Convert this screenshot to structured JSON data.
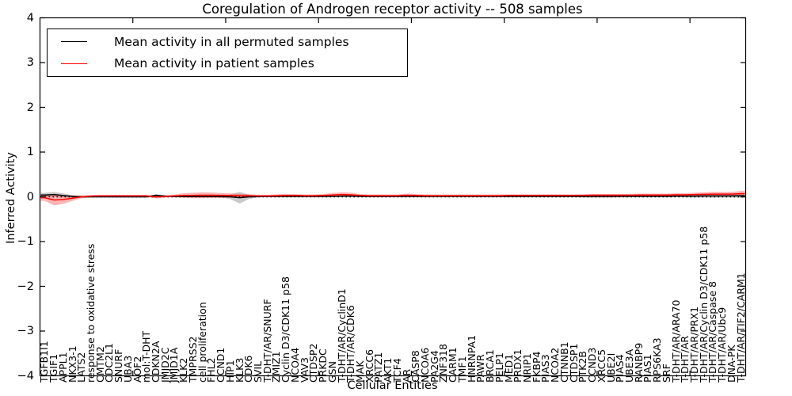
{
  "chart_data": {
    "type": "line",
    "title": "Coregulation of Androgen receptor activity -- 508 samples",
    "xlabel": "Cellular Entities",
    "ylabel": "Inferred Activity",
    "ylim": [
      -4,
      4
    ],
    "xlim": [
      0,
      76
    ],
    "grid": false,
    "legend_position": "upper left",
    "yticks": [
      {
        "value": 4,
        "label": "4"
      },
      {
        "value": 3,
        "label": "3"
      },
      {
        "value": 2,
        "label": "2"
      },
      {
        "value": 1,
        "label": "1"
      },
      {
        "value": 0,
        "label": "0"
      },
      {
        "value": -1,
        "label": "−1"
      },
      {
        "value": -2,
        "label": "−2"
      },
      {
        "value": -3,
        "label": "−3"
      },
      {
        "value": -4,
        "label": "−4"
      }
    ],
    "xticks": [
      10,
      20,
      30,
      40,
      50,
      60,
      70
    ],
    "zero_line": {
      "value": 0,
      "style": "dotted",
      "color": "#000000"
    },
    "categories": [
      "TGFB1I1",
      "TGIF1",
      "APPL1",
      "NKX3-1",
      "LATS2",
      "response to oxidative stress",
      "CMTM2",
      "CDC2L1",
      "SNURF",
      "UBA3",
      "AOF2",
      "mol:T-DHT",
      "CDKN2A",
      "JMJD2C",
      "JMJD1A",
      "KLK2",
      "TMPRSS2",
      "cell proliferation",
      "FHL2",
      "CCND1",
      "HIP1",
      "KLK3",
      "CDK6",
      "SVIL",
      "T-DHT/AR/SNURF",
      "ZMIZ1",
      "Cyclin D3/CDK11 p58",
      "NCOA4",
      "VAV3",
      "CTDSP2",
      "PRKDC",
      "GSN",
      "T-DHT/AR/CyclinD1",
      "T-DHT/AR/CDK6",
      "MAK",
      "XRCC6",
      "PATZ1",
      "AKT1",
      "TCF4",
      "AR",
      "CASP8",
      "NCOA6",
      "PA2G4",
      "ZNF318",
      "CARM1",
      "TMF1",
      "HNRNPA1",
      "PAWR",
      "BRCA1",
      "PELP1",
      "MED1",
      "PRDX1",
      "NRIP1",
      "FKBP4",
      "PIAS3",
      "NCOA2",
      "CTNNB1",
      "CTDSP1",
      "PTK2B",
      "CCND3",
      "XRCC5",
      "UBE2I",
      "PIAS4",
      "UBE3A",
      "RANBP9",
      "PIAS1",
      "RPS6KA3",
      "SRF",
      "T-DHT/AR/ARA70",
      "T-DHT/AR",
      "T-DHT/AR/PRX1",
      "T-DHT/AR/Cyclin D3/CDK11 p58",
      "T-DHT/AR/Caspase 8",
      "T-DHT/AR/Ubc9",
      "DNA-PK",
      "T-DHT/AR/TIF2/CARM1"
    ],
    "series": [
      {
        "name": "Mean activity in all permuted samples",
        "color": "#000000",
        "band_color": "rgba(80,80,80,0.30)",
        "values": [
          0.04,
          0.05,
          0.03,
          0.01,
          0,
          0,
          0,
          0,
          0,
          0,
          0,
          0,
          0.035,
          0.015,
          0.005,
          0.005,
          0.005,
          0.005,
          0.005,
          0.005,
          0,
          -0.02,
          0,
          0.005,
          0.01,
          0.01,
          0.01,
          0.01,
          0.01,
          0.01,
          0.01,
          0.01,
          0.015,
          0.015,
          0.01,
          0.01,
          0.01,
          0.01,
          0.01,
          0.01,
          0.01,
          0.01,
          0.01,
          0.01,
          0.01,
          0.01,
          0.01,
          0.01,
          0.01,
          0.01,
          0.01,
          0.01,
          0.01,
          0.01,
          0.01,
          0.01,
          0.01,
          0.01,
          0.01,
          0.01,
          0.01,
          0.01,
          0.01,
          0.01,
          0.01,
          0.01,
          0.01,
          0.01,
          0.015,
          0.015,
          0.015,
          0.02,
          0.02,
          0.02,
          0.02,
          0.025
        ],
        "std": [
          0.05,
          0.06,
          0.045,
          0.025,
          0.015,
          0.015,
          0.015,
          0.015,
          0.015,
          0.015,
          0.015,
          0.015,
          0.02,
          0.015,
          0.015,
          0.015,
          0.015,
          0.015,
          0.015,
          0.02,
          0.05,
          0.13,
          0.05,
          0.015,
          0.015,
          0.015,
          0.015,
          0.015,
          0.015,
          0.015,
          0.015,
          0.015,
          0.02,
          0.02,
          0.015,
          0.015,
          0.015,
          0.015,
          0.015,
          0.015,
          0.015,
          0.015,
          0.015,
          0.015,
          0.015,
          0.015,
          0.015,
          0.015,
          0.015,
          0.015,
          0.015,
          0.015,
          0.015,
          0.015,
          0.015,
          0.015,
          0.015,
          0.015,
          0.025,
          0.025,
          0.025,
          0.025,
          0.015,
          0.015,
          0.015,
          0.015,
          0.015,
          0.015,
          0.02,
          0.025,
          0.03,
          0.035,
          0.04,
          0.035,
          0.035,
          0.05
        ]
      },
      {
        "name": "Mean activity in patient samples",
        "color": "#ff0000",
        "band_color": "rgba(255,40,40,0.35)",
        "values": [
          -0.02,
          -0.07,
          -0.06,
          -0.03,
          0,
          0.015,
          0.02,
          0.02,
          0.02,
          0.02,
          0.02,
          0.02,
          -0.005,
          0.01,
          0.02,
          0.03,
          0.03,
          0.035,
          0.035,
          0.03,
          0.03,
          0.025,
          0.025,
          0.02,
          0.02,
          0.025,
          0.03,
          0.03,
          0.025,
          0.025,
          0.03,
          0.04,
          0.05,
          0.045,
          0.03,
          0.025,
          0.025,
          0.025,
          0.025,
          0.035,
          0.03,
          0.025,
          0.025,
          0.025,
          0.025,
          0.025,
          0.025,
          0.025,
          0.025,
          0.025,
          0.03,
          0.03,
          0.03,
          0.03,
          0.03,
          0.03,
          0.03,
          0.03,
          0.03,
          0.035,
          0.035,
          0.035,
          0.035,
          0.035,
          0.04,
          0.04,
          0.04,
          0.04,
          0.045,
          0.045,
          0.05,
          0.055,
          0.06,
          0.06,
          0.06,
          0.07
        ],
        "std": [
          0.07,
          0.12,
          0.1,
          0.06,
          0.03,
          0.025,
          0.025,
          0.025,
          0.025,
          0.025,
          0.025,
          0.025,
          0.03,
          0.025,
          0.03,
          0.05,
          0.06,
          0.065,
          0.06,
          0.055,
          0.045,
          0.04,
          0.03,
          0.025,
          0.025,
          0.03,
          0.035,
          0.03,
          0.025,
          0.025,
          0.03,
          0.045,
          0.05,
          0.045,
          0.03,
          0.025,
          0.025,
          0.025,
          0.025,
          0.035,
          0.03,
          0.025,
          0.025,
          0.025,
          0.025,
          0.025,
          0.025,
          0.025,
          0.025,
          0.025,
          0.025,
          0.025,
          0.025,
          0.025,
          0.025,
          0.025,
          0.025,
          0.025,
          0.025,
          0.03,
          0.03,
          0.03,
          0.03,
          0.03,
          0.03,
          0.03,
          0.03,
          0.03,
          0.035,
          0.035,
          0.04,
          0.045,
          0.05,
          0.05,
          0.05,
          0.06
        ]
      }
    ]
  }
}
